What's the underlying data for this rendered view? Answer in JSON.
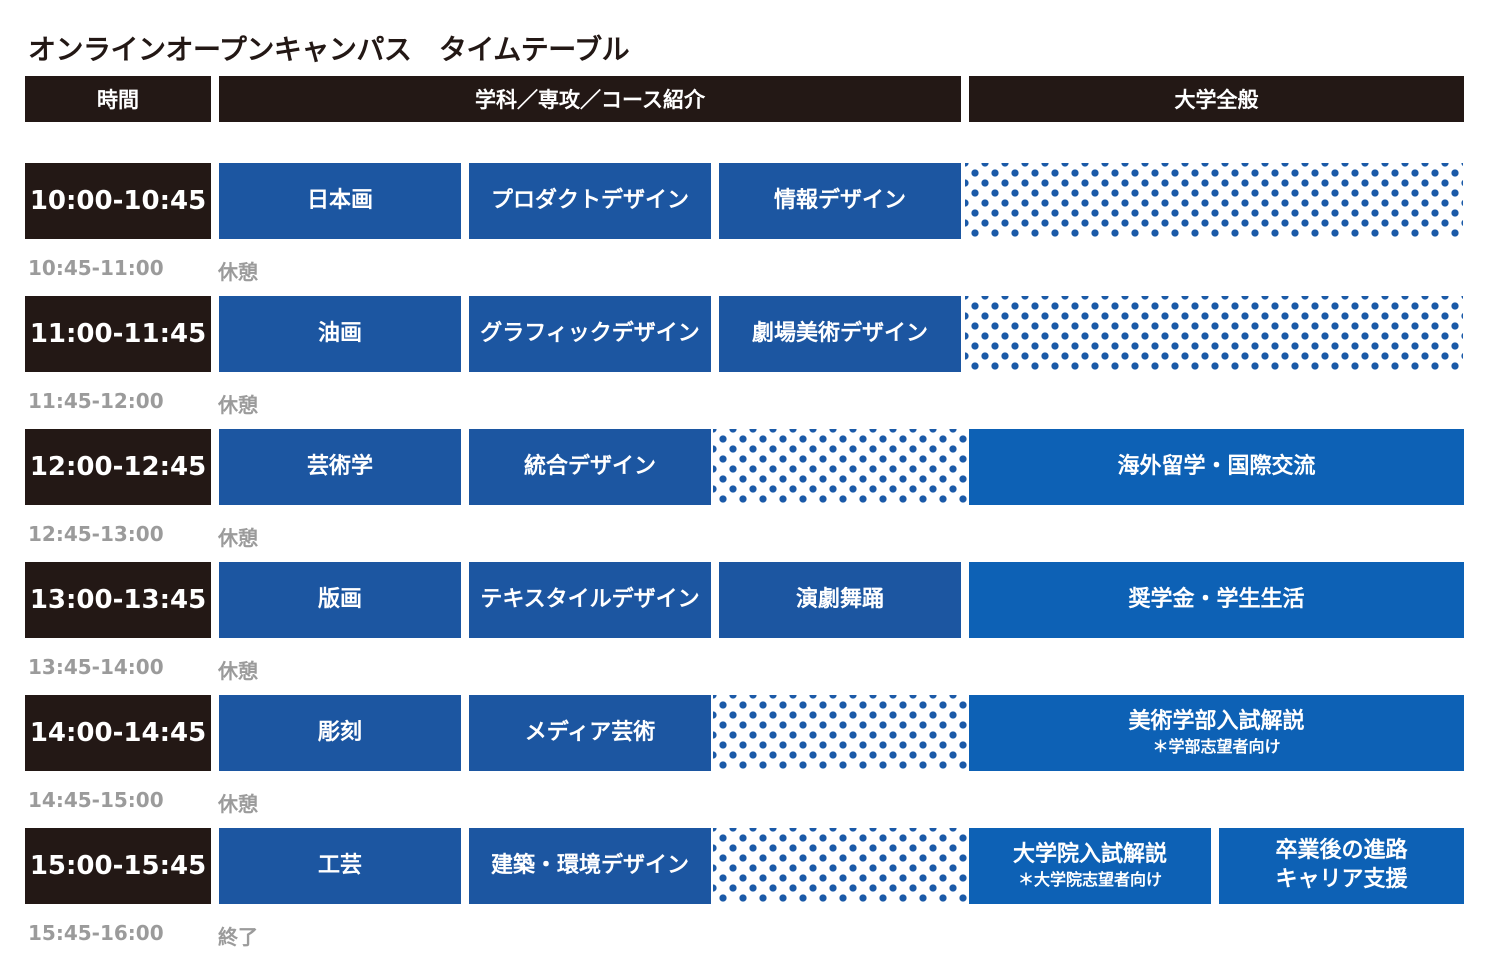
{
  "title": "オンラインオープンキャンパス　タイムテーブル",
  "headers": {
    "time": "時間",
    "department": "学科／専攻／コース紹介",
    "general": "大学全般"
  },
  "slots": [
    {
      "time": "10:00-10:45",
      "col1": "日本画",
      "col2": "プロダクトデザイン",
      "col3": "情報デザイン",
      "break_time": "10:45-11:00",
      "break_label": "休憩"
    },
    {
      "time": "11:00-11:45",
      "col1": "油画",
      "col2": "グラフィックデザイン",
      "col3": "劇場美術デザイン",
      "break_time": "11:45-12:00",
      "break_label": "休憩"
    },
    {
      "time": "12:00-12:45",
      "col1": "芸術学",
      "col2": "統合デザイン",
      "general": "海外留学・国際交流",
      "break_time": "12:45-13:00",
      "break_label": "休憩"
    },
    {
      "time": "13:00-13:45",
      "col1": "版画",
      "col2": "テキスタイルデザイン",
      "col3": "演劇舞踊",
      "general": "奨学金・学生生活",
      "break_time": "13:45-14:00",
      "break_label": "休憩"
    },
    {
      "time": "14:00-14:45",
      "col1": "彫刻",
      "col2": "メディア芸術",
      "general": "美術学部入試解説",
      "general_note": "＊学部志望者向け",
      "break_time": "14:45-15:00",
      "break_label": "休憩"
    },
    {
      "time": "15:00-15:45",
      "col1": "工芸",
      "col2": "建築・環境デザイン",
      "general_a": "大学院入試解説",
      "general_a_note": "＊大学院志望者向け",
      "general_b_line1": "卒業後の進路",
      "general_b_line2": "キャリア支援",
      "break_time": "15:45-16:00",
      "break_label": "終了"
    }
  ],
  "colors": {
    "header_bg": "#231815",
    "cell_blue": "#1c56a1",
    "general_blue": "#0d61b5",
    "dot_blue": "#1b5aa8",
    "break_gray": "#9b9b9b"
  }
}
